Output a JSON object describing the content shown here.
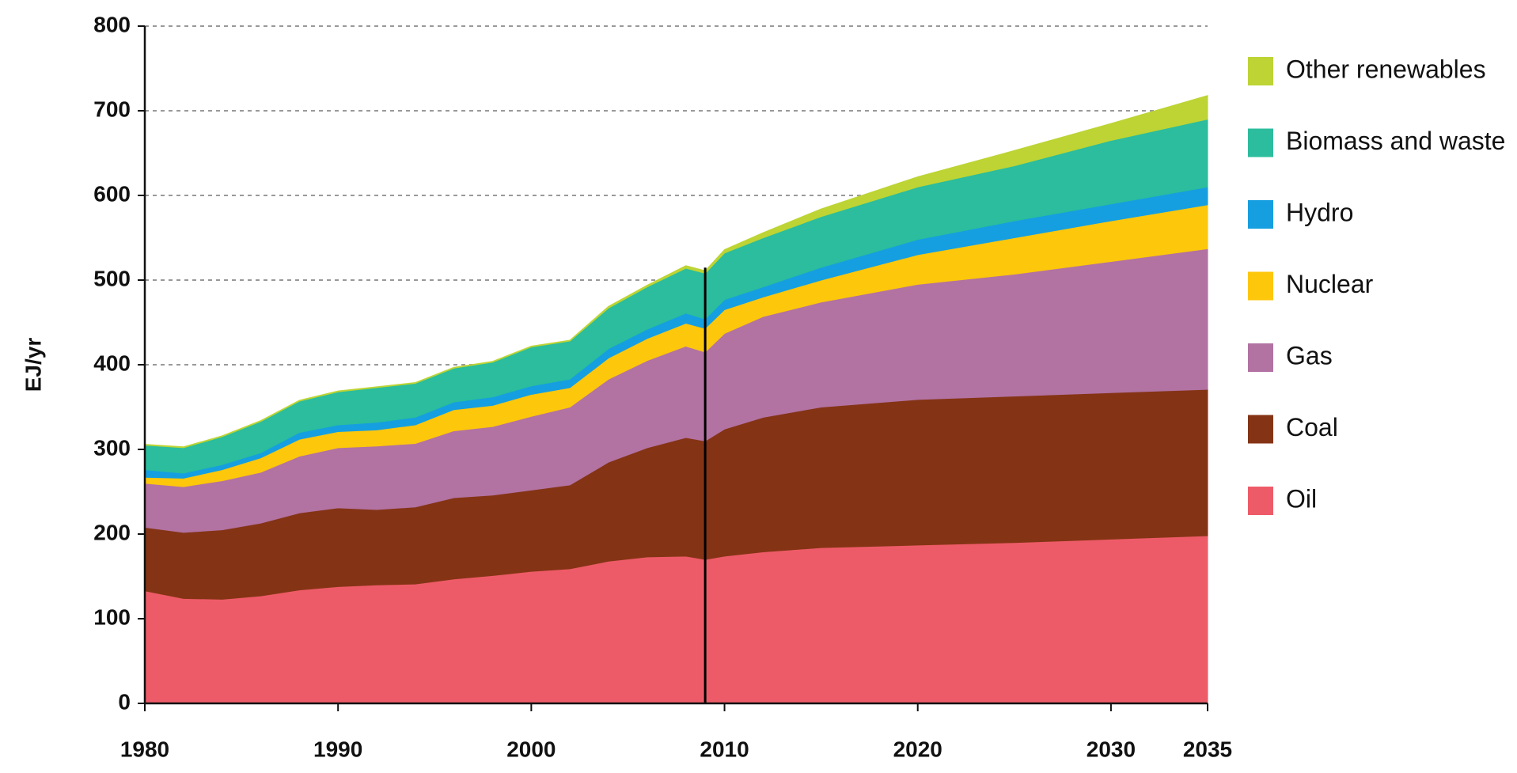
{
  "chart_data": {
    "type": "stacked-area",
    "y_label": "EJ/yr",
    "x": [
      1980,
      1982,
      1984,
      1986,
      1988,
      1990,
      1992,
      1994,
      1996,
      1998,
      2000,
      2002,
      2004,
      2006,
      2008,
      2009,
      2010,
      2012,
      2015,
      2020,
      2025,
      2030,
      2035
    ],
    "series": [
      {
        "name": "Oil",
        "color": "#ee5b68",
        "values": [
          133,
          124,
          123,
          127,
          134,
          138,
          140,
          141,
          147,
          151,
          156,
          159,
          168,
          173,
          174,
          170,
          174,
          179,
          184,
          187,
          190,
          194,
          198
        ]
      },
      {
        "name": "Coal",
        "color": "#843415",
        "values": [
          75,
          78,
          82,
          86,
          91,
          93,
          89,
          91,
          96,
          95,
          96,
          99,
          117,
          129,
          140,
          140,
          150,
          159,
          166,
          172,
          173,
          173,
          173
        ]
      },
      {
        "name": "Gas",
        "color": "#b272a2",
        "values": [
          52,
          54,
          58,
          60,
          67,
          71,
          75,
          75,
          79,
          81,
          87,
          92,
          98,
          103,
          108,
          105,
          113,
          119,
          124,
          136,
          144,
          155,
          166
        ]
      },
      {
        "name": "Nuclear",
        "color": "#fdc70c",
        "values": [
          7,
          10,
          13,
          17,
          20,
          19,
          19,
          22,
          25,
          25,
          26,
          23,
          25,
          26,
          27,
          28,
          28,
          23,
          26,
          35,
          43,
          48,
          52
        ]
      },
      {
        "name": "Hydro",
        "color": "#159fe0",
        "values": [
          9,
          6,
          6,
          6,
          8,
          8,
          9,
          9,
          9,
          10,
          10,
          10,
          11,
          11,
          12,
          11,
          12,
          12,
          15,
          18,
          20,
          20,
          21
        ]
      },
      {
        "name": "Biomass and waste",
        "color": "#2bbd9d",
        "values": [
          29,
          30,
          33,
          37,
          37,
          39,
          41,
          40,
          40,
          41,
          46,
          45,
          48,
          50,
          53,
          54,
          55,
          58,
          60,
          62,
          65,
          75,
          80
        ]
      },
      {
        "name": "Other renewables",
        "color": "#bdd434",
        "values": [
          1,
          1,
          1,
          1,
          1,
          1,
          1,
          1,
          1,
          1,
          1,
          1,
          2,
          2,
          3,
          3,
          4,
          6,
          9,
          12,
          18,
          20,
          28
        ]
      }
    ],
    "divider_x": 2009,
    "xlim": [
      1980,
      2035
    ],
    "xticks": [
      1980,
      1990,
      2000,
      2010,
      2020,
      2030,
      2035
    ],
    "ylim": [
      0,
      800
    ],
    "yticks": [
      0,
      100,
      200,
      300,
      400,
      500,
      600,
      700,
      800
    ],
    "grid": true
  }
}
